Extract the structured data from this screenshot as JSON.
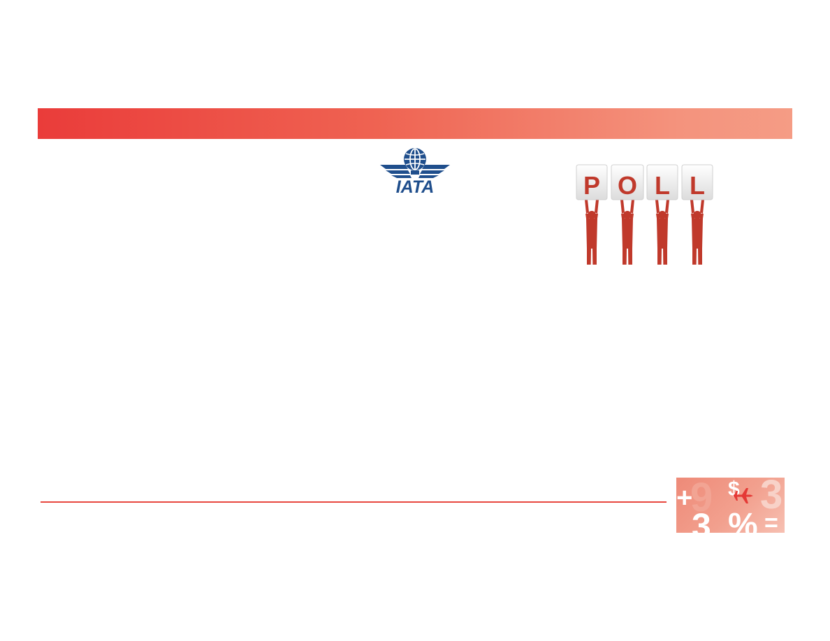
{
  "colors": {
    "banner_start": "#ea3c3a",
    "banner_end": "#f59c85",
    "iata_blue": "#1f4e8c",
    "poll_figure": "#c0392b",
    "poll_letter": "#c0392b",
    "poll_block": "#eeeeee",
    "footer_line": "#e8473e",
    "plane": "#e53935"
  },
  "logo": {
    "text": "IATA",
    "icon": "globe-wings-icon"
  },
  "poll": {
    "letters": [
      "P",
      "O",
      "L",
      "L"
    ],
    "icon": "people-holding-letters"
  },
  "decor": {
    "glyphs": {
      "plus": "+",
      "nine": "9",
      "dollar": "$",
      "three_top": "3",
      "three_bottom": "3",
      "percent": "%",
      "equals": "="
    },
    "icon": "airplane-icon"
  }
}
